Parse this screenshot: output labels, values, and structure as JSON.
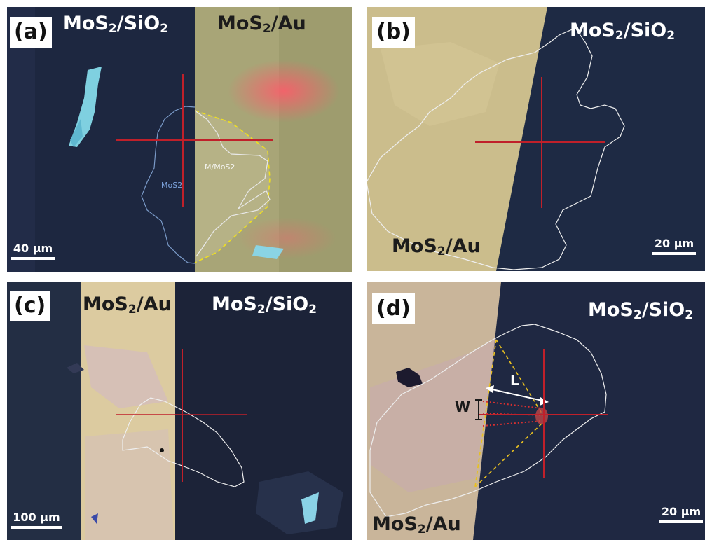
{
  "panels": {
    "a": {
      "tag": "(a)",
      "left_label": {
        "base": "MoS",
        "sub": "2",
        "rest": "/SiO",
        "sub2": "2"
      },
      "right_label": {
        "base": "MoS",
        "sub": "2",
        "rest": "/Au"
      },
      "region_label_mos2": "MoS2",
      "region_label_m_mos2": "M/MoS2",
      "scalebar": "40 µm"
    },
    "b": {
      "tag": "(b)",
      "top_label": {
        "base": "MoS",
        "sub": "2",
        "rest": "/SiO",
        "sub2": "2"
      },
      "bottom_label": {
        "base": "MoS",
        "sub": "2",
        "rest": "/Au"
      },
      "scalebar": "20 µm"
    },
    "c": {
      "tag": "(c)",
      "left_label": {
        "base": "MoS",
        "sub": "2",
        "rest": "/Au"
      },
      "right_label": {
        "base": "MoS",
        "sub": "2",
        "rest": "/SiO",
        "sub2": "2"
      },
      "scalebar": "100 µm"
    },
    "d": {
      "tag": "(d)",
      "top_label": {
        "base": "MoS",
        "sub": "2",
        "rest": "/SiO",
        "sub2": "2"
      },
      "bottom_label": {
        "base": "MoS",
        "sub": "2",
        "rest": "/Au"
      },
      "marker_w": "W",
      "marker_l": "L",
      "scalebar": "20 µm"
    }
  },
  "colors": {
    "substrate_dark": "#1a2438",
    "gold": "#cfc08e",
    "crosshair": "#c0202a",
    "outline": "#e8e8e8",
    "dashed": "#e8c020"
  }
}
